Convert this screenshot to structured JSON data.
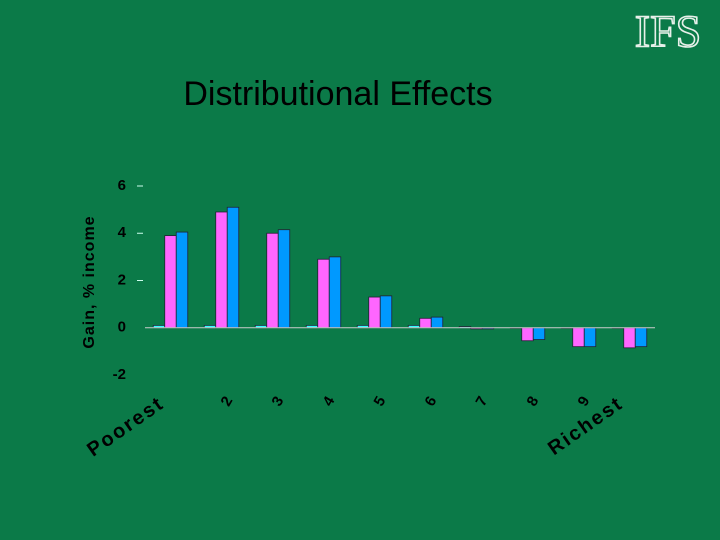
{
  "logo": "IFS",
  "chart_data": {
    "type": "bar",
    "title": "Distributional Effects",
    "y_label": "Gain, % income",
    "categories": [
      "Poorest",
      "2",
      "3",
      "4",
      "5",
      "6",
      "7",
      "8",
      "9",
      "Richest"
    ],
    "series": [
      {
        "color": "#33ffff",
        "values": [
          0.1,
          0.1,
          0.1,
          0.1,
          0.1,
          0.1,
          0.05,
          0,
          0,
          0
        ]
      },
      {
        "color": "#ff66ff",
        "values": [
          3.9,
          4.9,
          4.0,
          2.9,
          1.3,
          0.4,
          -0.05,
          -0.55,
          -0.8,
          -0.85
        ]
      },
      {
        "color": "#0099ff",
        "values": [
          4.05,
          5.1,
          4.15,
          3.0,
          1.35,
          0.45,
          -0.05,
          -0.5,
          -0.8,
          -0.8
        ]
      }
    ],
    "ylim": [
      -2,
      6
    ],
    "yticks": [
      -2,
      0,
      2,
      4,
      6
    ]
  }
}
